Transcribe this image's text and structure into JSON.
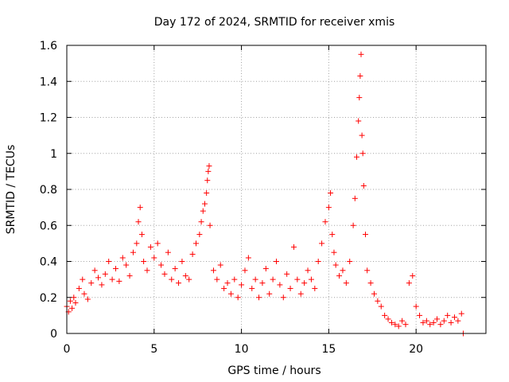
{
  "chart_data": {
    "type": "scatter",
    "title": "Day 172 of 2024, SRMTID for receiver xmis",
    "xlabel": "GPS time / hours",
    "ylabel": "SRMTID / TECUs",
    "xlim": [
      0,
      24
    ],
    "ylim": [
      0,
      1.6
    ],
    "xticks": [
      0,
      5,
      10,
      15,
      20
    ],
    "xtick_labels": [
      "0",
      "5",
      "10",
      "15",
      "20"
    ],
    "yticks": [
      0,
      0.2,
      0.4,
      0.6,
      0.8,
      1,
      1.2,
      1.4,
      1.6
    ],
    "ytick_labels": [
      "0",
      "0.2",
      "0.4",
      "0.6",
      "0.8",
      "1",
      "1.2",
      "1.4",
      "1.6"
    ],
    "grid": true,
    "marker": "plus",
    "color": "#ff0000",
    "series": [
      {
        "name": "SRMTID",
        "x": [
          0.0,
          0.1,
          0.2,
          0.3,
          0.4,
          0.5,
          0.7,
          0.9,
          1.0,
          1.2,
          1.4,
          1.6,
          1.8,
          2.0,
          2.2,
          2.4,
          2.6,
          2.8,
          3.0,
          3.2,
          3.4,
          3.6,
          3.8,
          4.0,
          4.1,
          4.2,
          4.3,
          4.4,
          4.6,
          4.8,
          5.0,
          5.2,
          5.4,
          5.6,
          5.8,
          6.0,
          6.2,
          6.4,
          6.6,
          6.8,
          7.0,
          7.2,
          7.4,
          7.6,
          7.7,
          7.8,
          7.9,
          8.0,
          8.05,
          8.1,
          8.15,
          8.2,
          8.4,
          8.6,
          8.8,
          9.0,
          9.2,
          9.4,
          9.6,
          9.8,
          10.0,
          10.2,
          10.4,
          10.6,
          10.8,
          11.0,
          11.2,
          11.4,
          11.6,
          11.8,
          12.0,
          12.2,
          12.4,
          12.6,
          12.8,
          13.0,
          13.2,
          13.4,
          13.6,
          13.8,
          14.0,
          14.2,
          14.4,
          14.6,
          14.8,
          15.0,
          15.1,
          15.2,
          15.3,
          15.4,
          15.6,
          15.8,
          16.0,
          16.2,
          16.4,
          16.5,
          16.6,
          16.7,
          16.75,
          16.8,
          16.85,
          16.9,
          16.95,
          17.0,
          17.1,
          17.2,
          17.4,
          17.6,
          17.8,
          18.0,
          18.2,
          18.4,
          18.6,
          18.8,
          19.0,
          19.2,
          19.4,
          19.6,
          19.8,
          20.0,
          20.2,
          20.4,
          20.6,
          20.8,
          21.0,
          21.2,
          21.4,
          21.6,
          21.8,
          22.0,
          22.2,
          22.4,
          22.6,
          22.7
        ],
        "y": [
          0.15,
          0.12,
          0.18,
          0.14,
          0.2,
          0.17,
          0.25,
          0.3,
          0.22,
          0.19,
          0.28,
          0.35,
          0.31,
          0.27,
          0.33,
          0.4,
          0.3,
          0.36,
          0.29,
          0.42,
          0.38,
          0.32,
          0.45,
          0.5,
          0.62,
          0.7,
          0.55,
          0.4,
          0.35,
          0.48,
          0.42,
          0.5,
          0.38,
          0.33,
          0.45,
          0.3,
          0.36,
          0.28,
          0.4,
          0.32,
          0.3,
          0.44,
          0.5,
          0.55,
          0.62,
          0.68,
          0.72,
          0.78,
          0.85,
          0.9,
          0.93,
          0.6,
          0.35,
          0.3,
          0.38,
          0.25,
          0.28,
          0.22,
          0.3,
          0.2,
          0.27,
          0.35,
          0.42,
          0.25,
          0.3,
          0.2,
          0.28,
          0.36,
          0.22,
          0.3,
          0.4,
          0.27,
          0.2,
          0.33,
          0.25,
          0.48,
          0.3,
          0.22,
          0.28,
          0.35,
          0.3,
          0.25,
          0.4,
          0.5,
          0.62,
          0.7,
          0.78,
          0.55,
          0.45,
          0.38,
          0.32,
          0.35,
          0.28,
          0.4,
          0.6,
          0.75,
          0.98,
          1.18,
          1.31,
          1.43,
          1.55,
          1.1,
          1.0,
          0.82,
          0.55,
          0.35,
          0.28,
          0.22,
          0.18,
          0.15,
          0.1,
          0.08,
          0.06,
          0.05,
          0.04,
          0.07,
          0.05,
          0.28,
          0.32,
          0.15,
          0.1,
          0.06,
          0.07,
          0.05,
          0.06,
          0.08,
          0.05,
          0.07,
          0.1,
          0.06,
          0.09,
          0.07,
          0.11,
          0.0
        ]
      }
    ]
  }
}
